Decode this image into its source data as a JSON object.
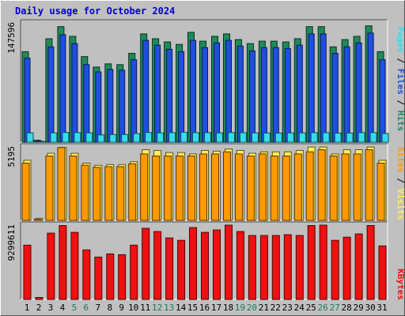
{
  "title": "Daily usage for October 2024",
  "colors": {
    "background": "#c0c0c0",
    "panel": "#c0c0c0",
    "title": "#0000cc",
    "hits": "#1e8a5a",
    "files": "#1f4fe0",
    "pages": "#33ddee",
    "visits": "#ffee55",
    "sites": "#ff9900",
    "kbytes": "#ee1111",
    "weekend_label": "#1a7a5a",
    "weekday_label": "#000000"
  },
  "legend": {
    "pages": "Pages",
    "files": "Files",
    "hits": "Hits",
    "sites": "Sites",
    "visits": "Visits",
    "kbytes": "KBytes",
    "sep": " / "
  },
  "chart_data": [
    {
      "type": "bar",
      "panel": "hits-files-pages",
      "categories": [
        "1",
        "2",
        "3",
        "4",
        "5",
        "6",
        "7",
        "8",
        "9",
        "10",
        "11",
        "12",
        "13",
        "14",
        "15",
        "16",
        "17",
        "18",
        "19",
        "20",
        "21",
        "22",
        "23",
        "24",
        "25",
        "26",
        "27",
        "28",
        "29",
        "30",
        "31"
      ],
      "weekend_days": [
        "5",
        "6",
        "12",
        "13",
        "19",
        "20",
        "26",
        "27"
      ],
      "y_axis_label": "147596",
      "ylim": [
        0,
        147596
      ],
      "series": [
        {
          "name": "Hits",
          "values": [
            112000,
            2500,
            128000,
            143000,
            131000,
            106000,
            93000,
            97000,
            96000,
            110000,
            134000,
            128000,
            124000,
            121000,
            136000,
            125000,
            131000,
            134000,
            127000,
            122000,
            125000,
            125000,
            124000,
            128000,
            143000,
            143000,
            118000,
            127000,
            131000,
            144000,
            112000
          ]
        },
        {
          "name": "Files",
          "values": [
            104000,
            1500,
            118000,
            133000,
            122000,
            96000,
            87000,
            90000,
            89000,
            102000,
            126000,
            120000,
            115000,
            112000,
            126000,
            117000,
            123000,
            126000,
            119000,
            113000,
            117000,
            117000,
            116000,
            120000,
            134000,
            134000,
            110000,
            118000,
            123000,
            135000,
            102000
          ]
        },
        {
          "name": "Pages",
          "values": [
            11500,
            400,
            11500,
            12000,
            11800,
            11500,
            9000,
            9500,
            9500,
            10800,
            12000,
            11500,
            11800,
            12300,
            11800,
            11800,
            11500,
            12000,
            11800,
            11500,
            11300,
            11300,
            11500,
            11500,
            11800,
            11800,
            11300,
            11300,
            11800,
            11800,
            10800
          ]
        }
      ]
    },
    {
      "type": "bar",
      "panel": "visits-sites",
      "categories": [
        "1",
        "2",
        "3",
        "4",
        "5",
        "6",
        "7",
        "8",
        "9",
        "10",
        "11",
        "12",
        "13",
        "14",
        "15",
        "16",
        "17",
        "18",
        "19",
        "20",
        "21",
        "22",
        "23",
        "24",
        "25",
        "26",
        "27",
        "28",
        "29",
        "30",
        "31"
      ],
      "y_axis_label": "5195",
      "ylim": [
        0,
        5195
      ],
      "series": [
        {
          "name": "Visits",
          "values": [
            4250,
            150,
            4750,
            5150,
            4750,
            4050,
            3900,
            3950,
            3950,
            4150,
            5000,
            4950,
            4800,
            4800,
            4700,
            4950,
            4900,
            5050,
            4950,
            4750,
            4850,
            4850,
            4850,
            4950,
            5190,
            5190,
            4700,
            5000,
            5000,
            5190,
            4250
          ]
        },
        {
          "name": "Sites",
          "values": [
            4050,
            80,
            4550,
            5150,
            4550,
            3900,
            3750,
            3800,
            3800,
            4000,
            4700,
            4550,
            4550,
            4550,
            4550,
            4700,
            4700,
            4850,
            4700,
            4550,
            4700,
            4550,
            4550,
            4700,
            4850,
            5000,
            4550,
            4700,
            4700,
            5000,
            4050
          ]
        }
      ]
    },
    {
      "type": "bar",
      "panel": "kbytes",
      "categories": [
        "1",
        "2",
        "3",
        "4",
        "5",
        "6",
        "7",
        "8",
        "9",
        "10",
        "11",
        "12",
        "13",
        "14",
        "15",
        "16",
        "17",
        "18",
        "19",
        "20",
        "21",
        "22",
        "23",
        "24",
        "25",
        "26",
        "27",
        "28",
        "29",
        "30",
        "31"
      ],
      "y_axis_label": "9299611",
      "ylim": [
        0,
        9299611
      ],
      "series": [
        {
          "name": "KBytes",
          "values": [
            6800000,
            250000,
            8300000,
            9250000,
            8400000,
            6200000,
            5300000,
            5700000,
            5600000,
            6800000,
            8900000,
            8500000,
            7700000,
            7400000,
            9000000,
            8400000,
            8700000,
            9299611,
            8500000,
            8000000,
            8000000,
            8000000,
            8100000,
            8000000,
            9250000,
            9299611,
            7400000,
            7800000,
            8200000,
            9250000,
            6700000
          ]
        }
      ]
    }
  ]
}
